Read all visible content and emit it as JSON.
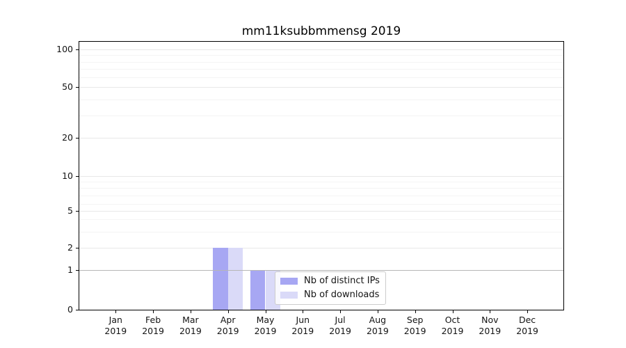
{
  "window": {
    "background": "#ffffff"
  },
  "chart_data": {
    "type": "bar",
    "title": "mm11ksubbmmensg 2019",
    "x_year": "2019",
    "categories": [
      "Jan",
      "Feb",
      "Mar",
      "Apr",
      "May",
      "Jun",
      "Jul",
      "Aug",
      "Sep",
      "Oct",
      "Nov",
      "Dec"
    ],
    "series": [
      {
        "name": "Nb of distinct IPs",
        "color": "#a7a7f3",
        "values": [
          0,
          0,
          0,
          2,
          1,
          0,
          0,
          0,
          0,
          0,
          0,
          0
        ]
      },
      {
        "name": "Nb of downloads",
        "color": "#dadaf8",
        "values": [
          0,
          0,
          0,
          2,
          1,
          0,
          0,
          0,
          0,
          0,
          0,
          0
        ]
      }
    ],
    "y_axis": {
      "ticks": [
        0,
        1,
        2,
        5,
        10,
        20,
        50,
        100
      ],
      "range": [
        0,
        100
      ],
      "scale": "log-like with 0 baseline"
    },
    "grid": {
      "major": true,
      "minor": true,
      "emphasized_value": 1
    },
    "legend": {
      "position": "inside-lower-center"
    }
  }
}
